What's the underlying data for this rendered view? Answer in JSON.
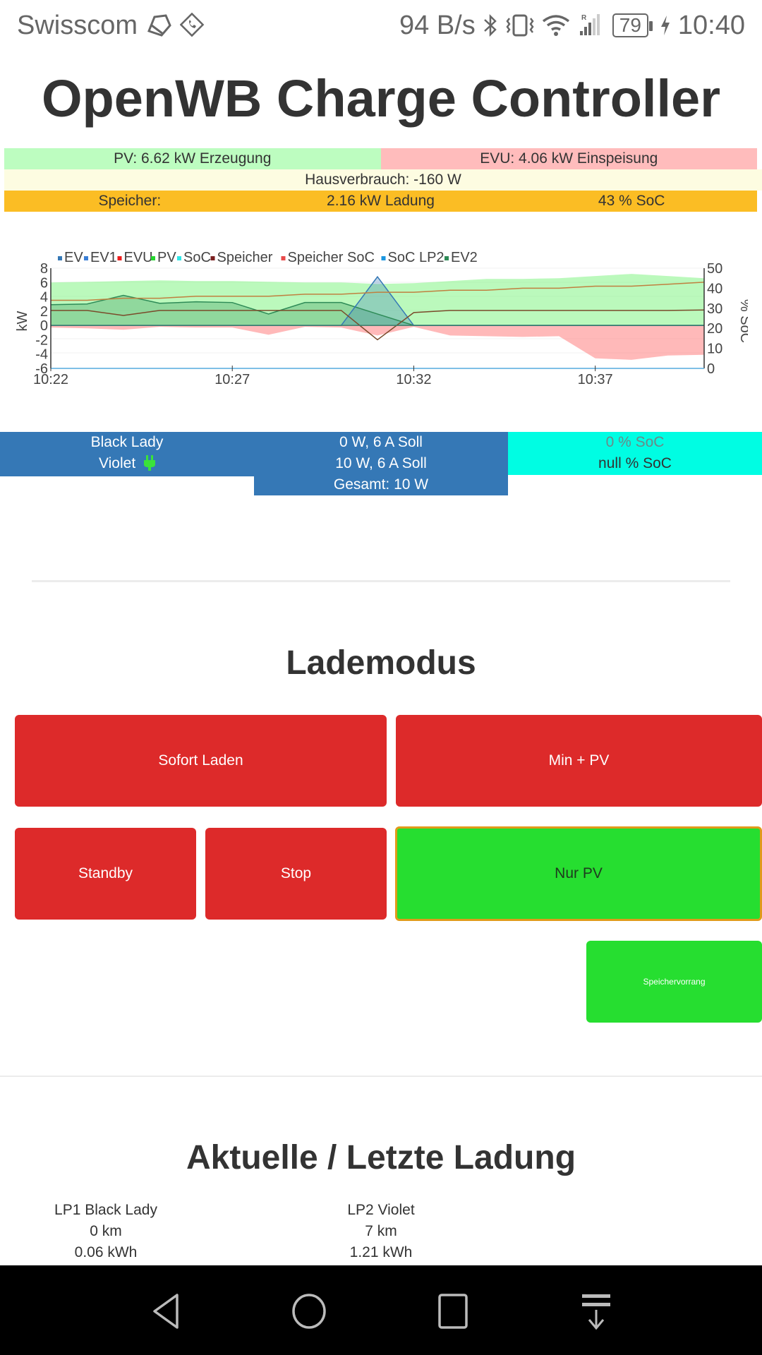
{
  "status_bar": {
    "carrier": "Swisscom",
    "net_speed": "94 B/s",
    "battery": "79",
    "time": "10:40",
    "icons_left": [
      "swisscom-logo-icon",
      "wifi-call-icon"
    ],
    "icons_right": [
      "bluetooth-icon",
      "vibrate-icon",
      "wifi-icon",
      "signal-roaming-icon",
      "battery-icon",
      "charging-icon"
    ]
  },
  "header": {
    "title": "OpenWB Charge Controller"
  },
  "summary": {
    "pv": "PV: 6.62 kW Erzeugung",
    "evu": "EVU: 4.06 kW Einspeisung",
    "hausverbrauch": "Hausverbrauch: -160 W",
    "speicher_label": "Speicher:",
    "speicher_power": "2.16 kW Ladung",
    "speicher_soc": "43 % SoC",
    "colors": {
      "pv": "#bdfdc0",
      "evu": "#ffbcbc",
      "haus": "#fdfce1",
      "speicher": "#fbbd24"
    }
  },
  "chart_data": {
    "type": "area",
    "title": "",
    "legend": [
      {
        "name": "EV",
        "color": "#3578b6"
      },
      {
        "name": "EV1",
        "color": "#3a7fd6"
      },
      {
        "name": "EVU",
        "color": "#ee1c1c"
      },
      {
        "name": "PV",
        "color": "#25d62e"
      },
      {
        "name": "SoC",
        "color": "#2ee6e6"
      },
      {
        "name": "Speicher",
        "color": "#7a2020"
      },
      {
        "name": "Speicher SoC",
        "color": "#e84a4a"
      },
      {
        "name": "SoC LP2",
        "color": "#1a96e0"
      },
      {
        "name": "EV2",
        "color": "#2e8b57"
      }
    ],
    "legend_position": "top",
    "x_ticks": [
      "10:22",
      "10:27",
      "10:32",
      "10:37"
    ],
    "ylabel": "kW",
    "y_ticks": [
      8,
      6,
      4,
      2,
      0,
      -2,
      -4,
      -6
    ],
    "ylim": [
      -6,
      8
    ],
    "y2label": "% SoC",
    "y2_ticks": [
      50,
      40,
      30,
      20,
      10,
      0
    ],
    "y2lim": [
      0,
      50
    ],
    "grid": true,
    "x": [
      "10:22",
      "10:23",
      "10:24",
      "10:25",
      "10:26",
      "10:27",
      "10:28",
      "10:29",
      "10:30",
      "10:31",
      "10:32",
      "10:33",
      "10:34",
      "10:35",
      "10:36",
      "10:37",
      "10:38",
      "10:39",
      "10:40"
    ],
    "series": [
      {
        "name": "PV",
        "values": [
          6.0,
          6.1,
          6.2,
          6.3,
          6.2,
          6.2,
          6.1,
          6.0,
          6.0,
          5.8,
          5.9,
          6.2,
          6.5,
          6.5,
          6.6,
          6.9,
          7.2,
          6.9,
          6.6
        ]
      },
      {
        "name": "EVU",
        "values": [
          -0.3,
          -0.4,
          -0.6,
          -0.2,
          -0.3,
          -0.3,
          -1.3,
          -0.2,
          -0.3,
          -1.4,
          -0.2,
          -1.4,
          -1.5,
          -1.6,
          -1.5,
          -4.6,
          -4.8,
          -4.2,
          -4.1
        ]
      },
      {
        "name": "EV2",
        "values": [
          2.9,
          3.0,
          4.2,
          3.1,
          3.3,
          3.2,
          1.6,
          3.2,
          3.2,
          1.6,
          0,
          0,
          0,
          0,
          0,
          0,
          0,
          0,
          0
        ]
      },
      {
        "name": "EV",
        "values": [
          0,
          0,
          0,
          0,
          0,
          0,
          0,
          0,
          0,
          6.8,
          0,
          0,
          0,
          0,
          0,
          0,
          0,
          0,
          0
        ]
      },
      {
        "name": "Speicher",
        "values": [
          2.1,
          2.1,
          1.4,
          2.1,
          2.1,
          2.1,
          2.1,
          2.1,
          2.1,
          -2.0,
          1.8,
          2.1,
          2.1,
          2.1,
          2.1,
          2.1,
          2.1,
          2.1,
          2.16
        ]
      },
      {
        "name": "Speicher SoC",
        "values": [
          34,
          34,
          35,
          35,
          36,
          36,
          36,
          37,
          37,
          38,
          38,
          39,
          39,
          40,
          40,
          41,
          41,
          42,
          43
        ]
      },
      {
        "name": "SoC LP2",
        "values": [
          0,
          0,
          0,
          0,
          0,
          0,
          0,
          0,
          0,
          0,
          0,
          0,
          0,
          0,
          0,
          0,
          0,
          0,
          0
        ]
      }
    ]
  },
  "ladepunkte": {
    "names": [
      "Black Lady",
      "Violet"
    ],
    "power": [
      "0 W, 6 A Soll",
      "10 W, 6 A Soll",
      "Gesamt: 10 W"
    ],
    "soc": [
      "0 % SoC",
      "null % SoC"
    ],
    "plug_icon": "plug-icon"
  },
  "lademodus": {
    "title": "Lademodus",
    "buttons": {
      "sofort": "Sofort Laden",
      "minpv": "Min + PV",
      "standby": "Standby",
      "stop": "Stop",
      "nurpv": "Nur PV",
      "speichervorrang": "Speichervorrang"
    },
    "active": "Nur PV"
  },
  "ladung": {
    "title": "Aktuelle / Letzte Ladung",
    "lp1": {
      "name": "LP1 Black Lady",
      "km": "0 km",
      "kwh": "0.06 kWh"
    },
    "lp2": {
      "name": "LP2 Violet",
      "km": "7 km",
      "kwh": "1.21 kWh"
    }
  },
  "nav_bar": {
    "buttons": [
      "back-icon",
      "home-icon",
      "recents-icon",
      "notification-pulldown-icon"
    ]
  }
}
